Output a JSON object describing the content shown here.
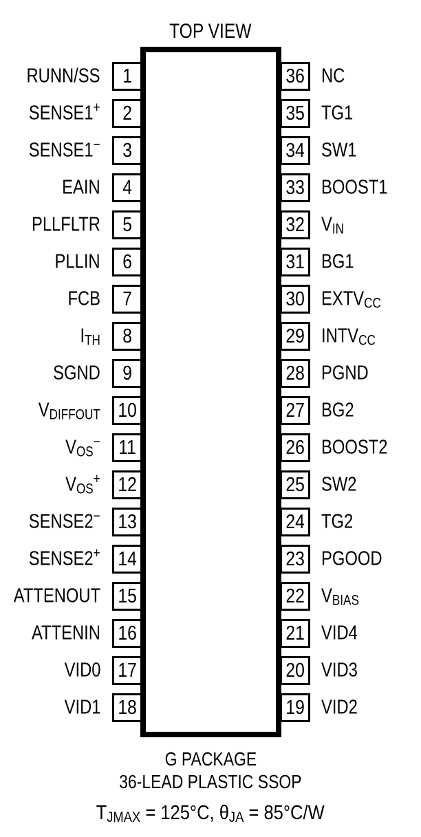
{
  "title": "TOP VIEW",
  "colors": {
    "ink": "#000000",
    "background": "#ffffff"
  },
  "pins": {
    "left": [
      {
        "num": "1",
        "parts": [
          {
            "t": "RUNN/SS"
          }
        ]
      },
      {
        "num": "2",
        "parts": [
          {
            "t": "SENSE1"
          },
          {
            "t": "+",
            "s": "sup"
          }
        ]
      },
      {
        "num": "3",
        "parts": [
          {
            "t": "SENSE1"
          },
          {
            "t": "−",
            "s": "sup"
          }
        ]
      },
      {
        "num": "4",
        "parts": [
          {
            "t": "EAIN"
          }
        ]
      },
      {
        "num": "5",
        "parts": [
          {
            "t": "PLLFLTR"
          }
        ]
      },
      {
        "num": "6",
        "parts": [
          {
            "t": "PLLIN"
          }
        ]
      },
      {
        "num": "7",
        "parts": [
          {
            "t": "FCB"
          }
        ]
      },
      {
        "num": "8",
        "parts": [
          {
            "t": "I"
          },
          {
            "t": "TH",
            "s": "sub"
          }
        ]
      },
      {
        "num": "9",
        "parts": [
          {
            "t": "SGND"
          }
        ]
      },
      {
        "num": "10",
        "parts": [
          {
            "t": "V"
          },
          {
            "t": "DIFFOUT",
            "s": "sub"
          }
        ]
      },
      {
        "num": "11",
        "parts": [
          {
            "t": "V"
          },
          {
            "t": "OS",
            "s": "sub"
          },
          {
            "t": "−",
            "s": "sup"
          }
        ]
      },
      {
        "num": "12",
        "parts": [
          {
            "t": "V"
          },
          {
            "t": "OS",
            "s": "sub"
          },
          {
            "t": "+",
            "s": "sup"
          }
        ]
      },
      {
        "num": "13",
        "parts": [
          {
            "t": "SENSE2"
          },
          {
            "t": "−",
            "s": "sup"
          }
        ]
      },
      {
        "num": "14",
        "parts": [
          {
            "t": "SENSE2"
          },
          {
            "t": "+",
            "s": "sup"
          }
        ]
      },
      {
        "num": "15",
        "parts": [
          {
            "t": "ATTENOUT"
          }
        ]
      },
      {
        "num": "16",
        "parts": [
          {
            "t": "ATTENIN"
          }
        ]
      },
      {
        "num": "17",
        "parts": [
          {
            "t": "VID0"
          }
        ]
      },
      {
        "num": "18",
        "parts": [
          {
            "t": "VID1"
          }
        ]
      }
    ],
    "right": [
      {
        "num": "36",
        "parts": [
          {
            "t": "NC"
          }
        ]
      },
      {
        "num": "35",
        "parts": [
          {
            "t": "TG1"
          }
        ]
      },
      {
        "num": "34",
        "parts": [
          {
            "t": "SW1"
          }
        ]
      },
      {
        "num": "33",
        "parts": [
          {
            "t": "BOOST1"
          }
        ]
      },
      {
        "num": "32",
        "parts": [
          {
            "t": "V"
          },
          {
            "t": "IN",
            "s": "sub"
          }
        ]
      },
      {
        "num": "31",
        "parts": [
          {
            "t": "BG1"
          }
        ]
      },
      {
        "num": "30",
        "parts": [
          {
            "t": "EXTV"
          },
          {
            "t": "CC",
            "s": "sub"
          }
        ]
      },
      {
        "num": "29",
        "parts": [
          {
            "t": "INTV"
          },
          {
            "t": "CC",
            "s": "sub"
          }
        ]
      },
      {
        "num": "28",
        "parts": [
          {
            "t": "PGND"
          }
        ]
      },
      {
        "num": "27",
        "parts": [
          {
            "t": "BG2"
          }
        ]
      },
      {
        "num": "26",
        "parts": [
          {
            "t": "BOOST2"
          }
        ]
      },
      {
        "num": "25",
        "parts": [
          {
            "t": "SW2"
          }
        ]
      },
      {
        "num": "24",
        "parts": [
          {
            "t": "TG2"
          }
        ]
      },
      {
        "num": "23",
        "parts": [
          {
            "t": "PGOOD"
          }
        ]
      },
      {
        "num": "22",
        "parts": [
          {
            "t": "V"
          },
          {
            "t": "BIAS",
            "s": "sub"
          }
        ]
      },
      {
        "num": "21",
        "parts": [
          {
            "t": "VID4"
          }
        ]
      },
      {
        "num": "20",
        "parts": [
          {
            "t": "VID3"
          }
        ]
      },
      {
        "num": "19",
        "parts": [
          {
            "t": "VID2"
          }
        ]
      }
    ]
  },
  "footer": {
    "package": "G PACKAGE",
    "package_type": "36-LEAD PLASTIC SSOP",
    "thermal": [
      {
        "t": "T"
      },
      {
        "t": "JMAX",
        "s": "sub"
      },
      {
        "t": " = 125°C, "
      },
      {
        "t": "θ"
      },
      {
        "t": "JA",
        "s": "sub"
      },
      {
        "t": " = 85°C/W"
      }
    ]
  }
}
